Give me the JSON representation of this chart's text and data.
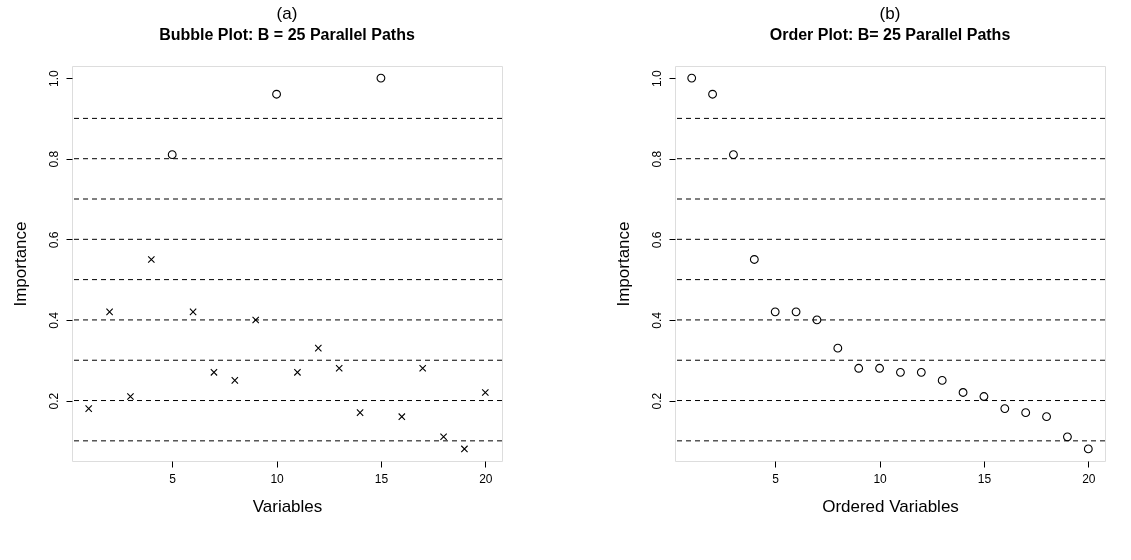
{
  "chart_data": [
    {
      "type": "scatter",
      "title": "(a)",
      "subtitle": "Bubble Plot: B = 25 Parallel Paths",
      "xlabel": "Variables",
      "ylabel": "Importance",
      "xlim": [
        0.2,
        20.8
      ],
      "xticks": [
        5,
        10,
        15,
        20
      ],
      "ylim": [
        0.05,
        1.03
      ],
      "yticks": [
        0.2,
        0.4,
        0.6,
        0.8,
        {
          "value": 1,
          "label": "1.0"
        }
      ],
      "grid": false,
      "series": [
        {
          "color": "#000000",
          "marker": "cross",
          "x": [
            1,
            2,
            3,
            4,
            6,
            7,
            8,
            9,
            11,
            12,
            13,
            14,
            16,
            17,
            18,
            19,
            20
          ],
          "values": [
            0.18,
            0.42,
            0.21,
            0.55,
            0.42,
            0.27,
            0.25,
            0.4,
            0.27,
            0.33,
            0.28,
            0.17,
            0.16,
            0.28,
            0.11,
            0.08,
            0.22
          ]
        },
        {
          "color": "#000000",
          "marker": "circle",
          "x": [
            5,
            10,
            15
          ],
          "values": [
            0.81,
            0.96,
            1.0
          ]
        }
      ],
      "ref_lines": [
        {
          "axis": "y",
          "value": 0.1,
          "line_style": "dashed"
        },
        {
          "axis": "y",
          "value": 0.2,
          "line_style": "dashed"
        },
        {
          "axis": "y",
          "value": 0.3,
          "line_style": "dashed"
        },
        {
          "axis": "y",
          "value": 0.4,
          "line_style": "dashed"
        },
        {
          "axis": "y",
          "value": 0.5,
          "line_style": "dashed"
        },
        {
          "axis": "y",
          "value": 0.6,
          "line_style": "dashed"
        },
        {
          "axis": "y",
          "value": 0.7,
          "line_style": "dashed"
        },
        {
          "axis": "y",
          "value": 0.8,
          "line_style": "dashed"
        },
        {
          "axis": "y",
          "value": 0.9,
          "line_style": "dashed"
        }
      ]
    },
    {
      "type": "scatter",
      "title": "(b)",
      "subtitle": "Order Plot: B= 25 Parallel Paths",
      "xlabel": "Ordered Variables",
      "ylabel": "Importance",
      "xlim": [
        0.2,
        20.8
      ],
      "xticks": [
        5,
        10,
        15,
        20
      ],
      "ylim": [
        0.05,
        1.03
      ],
      "yticks": [
        0.2,
        0.4,
        0.6,
        0.8,
        {
          "value": 1,
          "label": "1.0"
        }
      ],
      "grid": false,
      "marker": "circle",
      "series": [
        {
          "color": "#000000",
          "x": [
            1,
            2,
            3,
            4,
            5,
            6,
            7,
            8,
            9,
            10,
            11,
            12,
            13,
            14,
            15,
            16,
            17,
            18,
            19,
            20
          ],
          "values": [
            1.0,
            0.96,
            0.81,
            0.55,
            0.42,
            0.42,
            0.4,
            0.33,
            0.28,
            0.28,
            0.27,
            0.27,
            0.25,
            0.22,
            0.21,
            0.18,
            0.17,
            0.16,
            0.11,
            0.08
          ]
        }
      ],
      "ref_lines": [
        {
          "axis": "y",
          "value": 0.1,
          "line_style": "dashed"
        },
        {
          "axis": "y",
          "value": 0.2,
          "line_style": "dashed"
        },
        {
          "axis": "y",
          "value": 0.3,
          "line_style": "dashed"
        },
        {
          "axis": "y",
          "value": 0.4,
          "line_style": "dashed"
        },
        {
          "axis": "y",
          "value": 0.5,
          "line_style": "dashed"
        },
        {
          "axis": "y",
          "value": 0.6,
          "line_style": "dashed"
        },
        {
          "axis": "y",
          "value": 0.7,
          "line_style": "dashed"
        },
        {
          "axis": "y",
          "value": 0.8,
          "line_style": "dashed"
        },
        {
          "axis": "y",
          "value": 0.9,
          "line_style": "dashed"
        }
      ]
    }
  ]
}
